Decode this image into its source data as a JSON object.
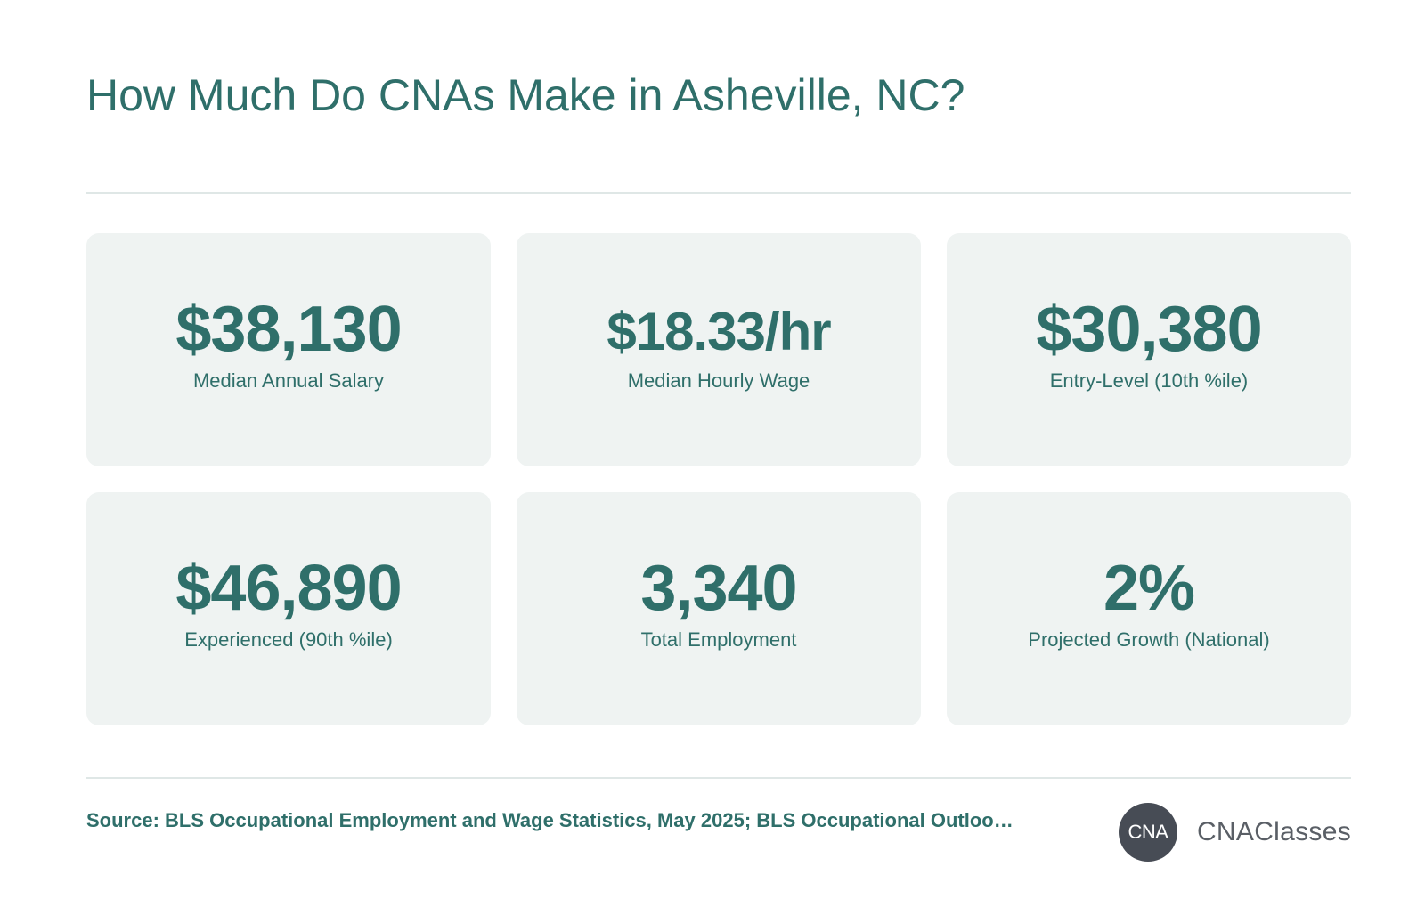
{
  "title": "How Much Do CNAs Make in Asheville, NC?",
  "cards": [
    {
      "value": "$38,130",
      "label": "Median Annual Salary"
    },
    {
      "value": "$18.33/hr",
      "label": "Median Hourly Wage"
    },
    {
      "value": "$30,380",
      "label": "Entry-Level (10th %ile)"
    },
    {
      "value": "$46,890",
      "label": "Experienced (90th %ile)"
    },
    {
      "value": "3,340",
      "label": "Total Employment"
    },
    {
      "value": "2%",
      "label": "Projected Growth (National)"
    }
  ],
  "footer": {
    "source": "Source: BLS Occupational Employment and Wage Statistics, May 2025; BLS Occupational Outloo…",
    "brand_badge": "CNA",
    "brand_name": "CNAClasses"
  },
  "colors": {
    "accent": "#2f6f6a",
    "card_background": "#eff3f2",
    "badge_background": "#474c55"
  }
}
